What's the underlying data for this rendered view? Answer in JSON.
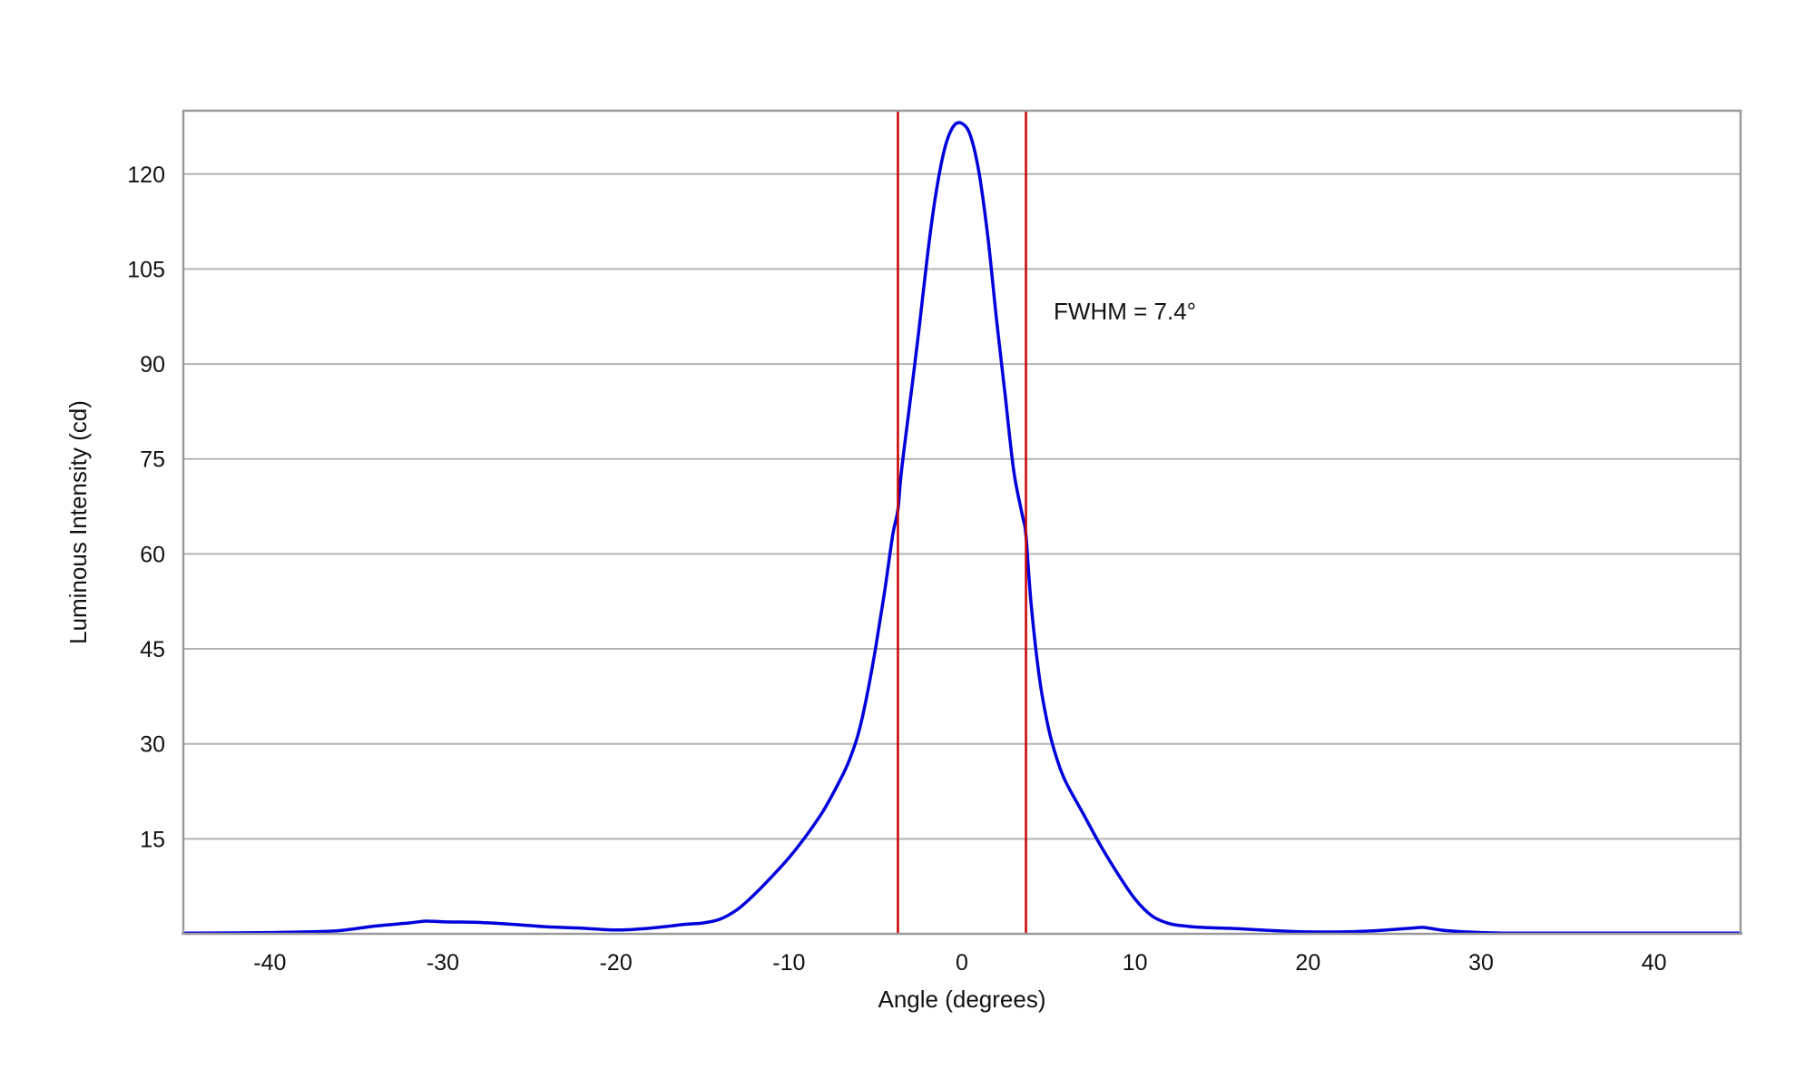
{
  "chart_data": {
    "type": "line",
    "xlabel": "Angle (degrees)",
    "ylabel": "Luminous Intensity (cd)",
    "xlim": [
      -45,
      45
    ],
    "ylim": [
      0,
      130
    ],
    "xticks": [
      -40,
      -30,
      -20,
      -10,
      0,
      10,
      20,
      30,
      40
    ],
    "yticks": [
      15,
      30,
      45,
      60,
      75,
      90,
      105,
      120
    ],
    "grid": "horizontal",
    "colors": {
      "series": "#0000dd",
      "markers": "#cc0000",
      "grid": "#b3b3b3",
      "frame": "#9a9a9a"
    },
    "series": [
      {
        "x": [
          -45,
          -42,
          -40,
          -38,
          -36,
          -34,
          -32,
          -31,
          -30,
          -28,
          -26,
          -24,
          -22,
          -20,
          -18,
          -16,
          -15,
          -14,
          -13,
          -12,
          -11,
          -10,
          -9,
          -8,
          -7,
          -6.5,
          -6,
          -5.5,
          -5,
          -4.5,
          -4,
          -3.7,
          -3.5,
          -3,
          -2.5,
          -2,
          -1.5,
          -1,
          -0.5,
          0,
          0.5,
          1,
          1.5,
          2,
          2.5,
          3,
          3.5,
          3.7,
          4,
          4.5,
          5,
          5.5,
          6,
          7,
          8,
          9,
          10,
          11,
          12,
          13,
          14,
          16,
          18,
          20,
          22,
          24,
          26,
          26.7,
          28,
          30,
          32,
          35,
          40,
          45
        ],
        "y": [
          0.1,
          0.15,
          0.2,
          0.3,
          0.5,
          1.2,
          1.7,
          2.0,
          1.9,
          1.8,
          1.5,
          1.1,
          0.9,
          0.6,
          0.9,
          1.5,
          1.7,
          2.3,
          3.8,
          6.2,
          9.0,
          12.0,
          15.5,
          19.5,
          24.5,
          27.5,
          31.5,
          37.5,
          45.0,
          53.5,
          63.0,
          67.0,
          73.0,
          84.0,
          95.0,
          107.0,
          117.0,
          124.0,
          127.5,
          128.0,
          126.0,
          120.0,
          110.0,
          97.0,
          85.0,
          73.0,
          66.0,
          63.0,
          52.0,
          40.0,
          32.5,
          27.5,
          24.0,
          19.0,
          14.0,
          9.5,
          5.5,
          2.8,
          1.6,
          1.2,
          1.0,
          0.8,
          0.5,
          0.3,
          0.3,
          0.5,
          0.9,
          1.0,
          0.5,
          0.2,
          0.1,
          0.1,
          0.1,
          0.1
        ]
      }
    ],
    "vlines": [
      -3.7,
      3.7
    ],
    "annotations": [
      {
        "text": "FWHM = 7.4°",
        "x": 5.3,
        "y": 97
      }
    ]
  }
}
